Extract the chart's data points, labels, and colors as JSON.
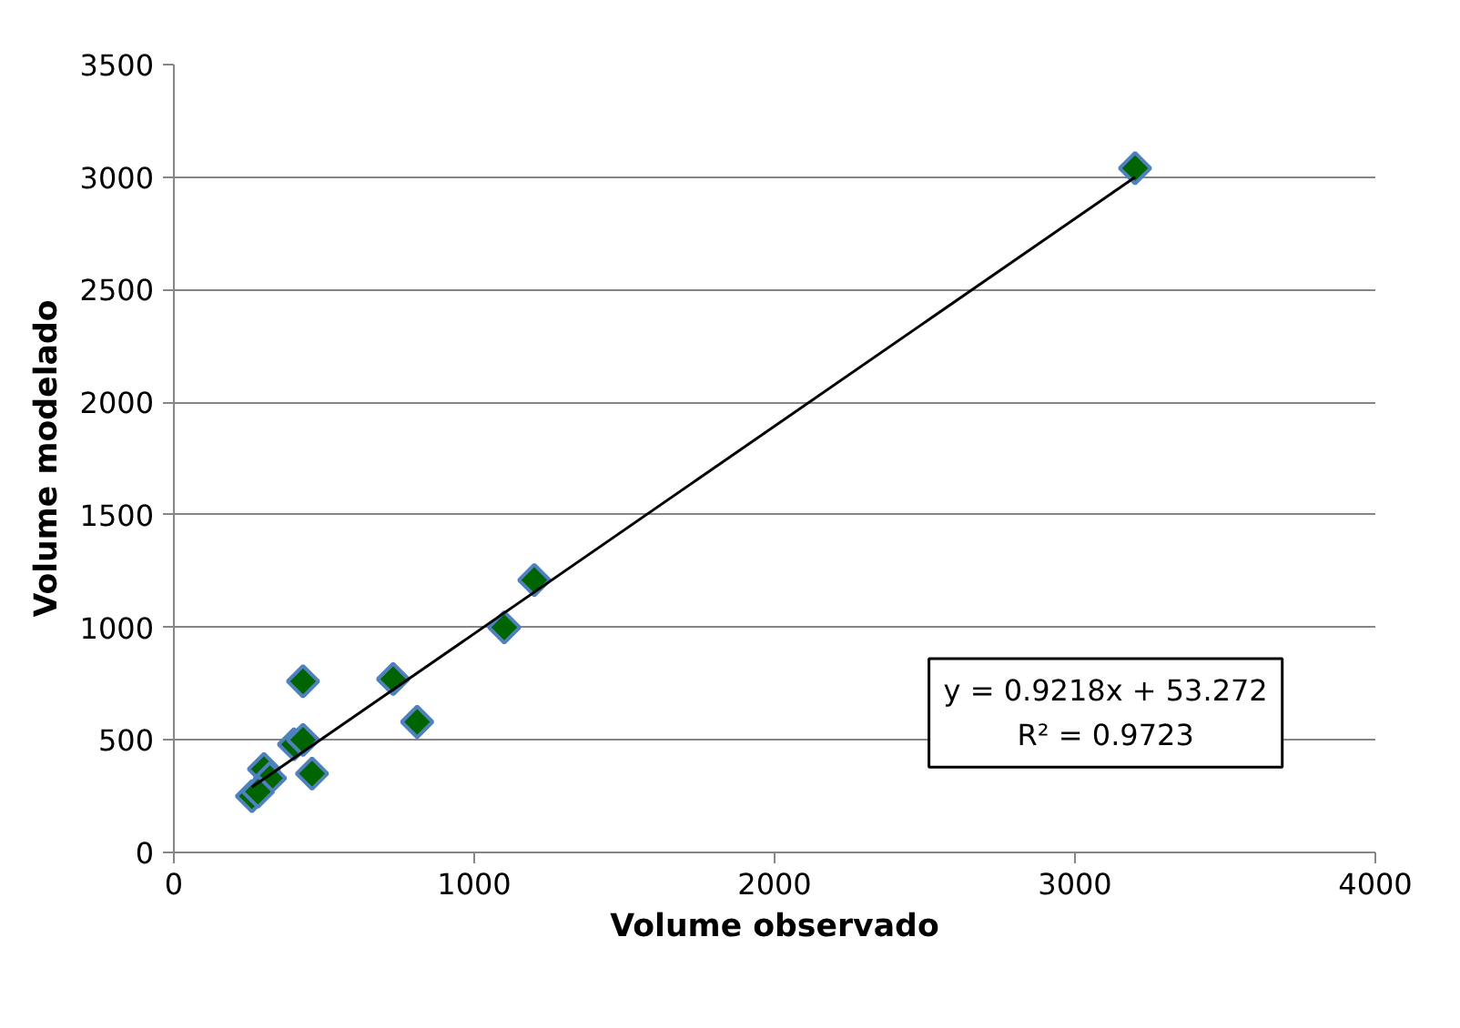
{
  "chart_data": {
    "type": "scatter",
    "xlabel": "Volume observado",
    "ylabel": "Volume modelado",
    "xlim": [
      0,
      4000
    ],
    "xticks": [
      0,
      1000,
      2000,
      3000,
      4000
    ],
    "ylim": [
      0,
      3500
    ],
    "yticks": [
      0,
      500,
      1000,
      1500,
      2000,
      2500,
      3000,
      3500
    ],
    "grid": "y",
    "series": [
      {
        "color": "#006400",
        "marker": "diamond",
        "x": [
          3200,
          1200,
          1100,
          730,
          430,
          810,
          400,
          430,
          460,
          300,
          320,
          260,
          280
        ],
        "values": [
          3040,
          1210,
          1000,
          770,
          760,
          580,
          480,
          500,
          350,
          370,
          330,
          250,
          270
        ]
      },
      {
        "type": "line",
        "color": "#000000",
        "x": [
          260,
          3200
        ],
        "values": [
          290,
          3000
        ]
      }
    ],
    "annotations": [
      "y = 0.9218x + 53.272",
      "R² = 0.9723"
    ]
  }
}
